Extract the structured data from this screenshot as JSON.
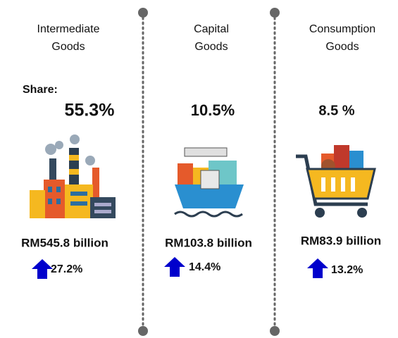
{
  "share_label": "Share:",
  "columns": [
    {
      "title_lines": [
        "Intermediate",
        "Goods"
      ],
      "share": "55.3%",
      "value": "RM545.8 billion",
      "growth": "27.2%"
    },
    {
      "title_lines": [
        "Capital",
        "Goods"
      ],
      "share": "10.5%",
      "value": "RM103.8 billion",
      "growth": "14.4%"
    },
    {
      "title_lines": [
        "Consumption",
        "Goods"
      ],
      "share": "8.5 %",
      "value": "RM83.9 billion",
      "growth": "13.2%"
    }
  ]
}
